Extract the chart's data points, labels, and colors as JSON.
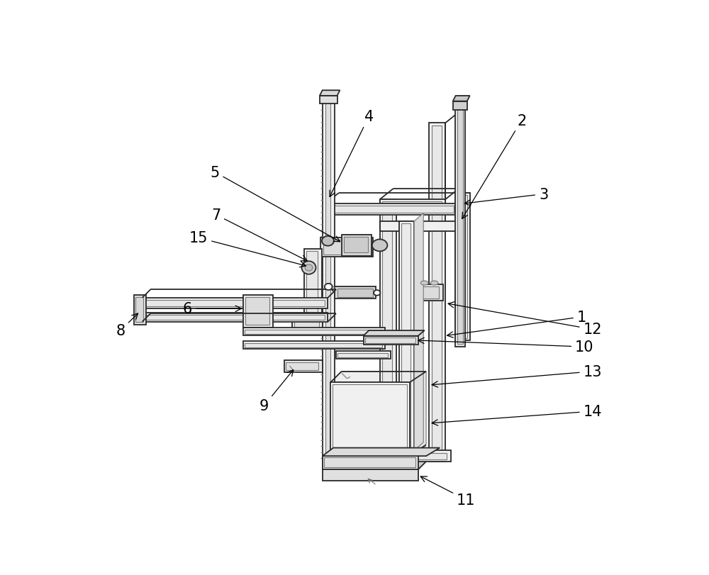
{
  "bg_color": "#ffffff",
  "lc": "#2a2a2a",
  "lcg": "#777777",
  "lcl": "#aaaaaa",
  "figsize": [
    10.0,
    8.12
  ],
  "dpi": 100
}
